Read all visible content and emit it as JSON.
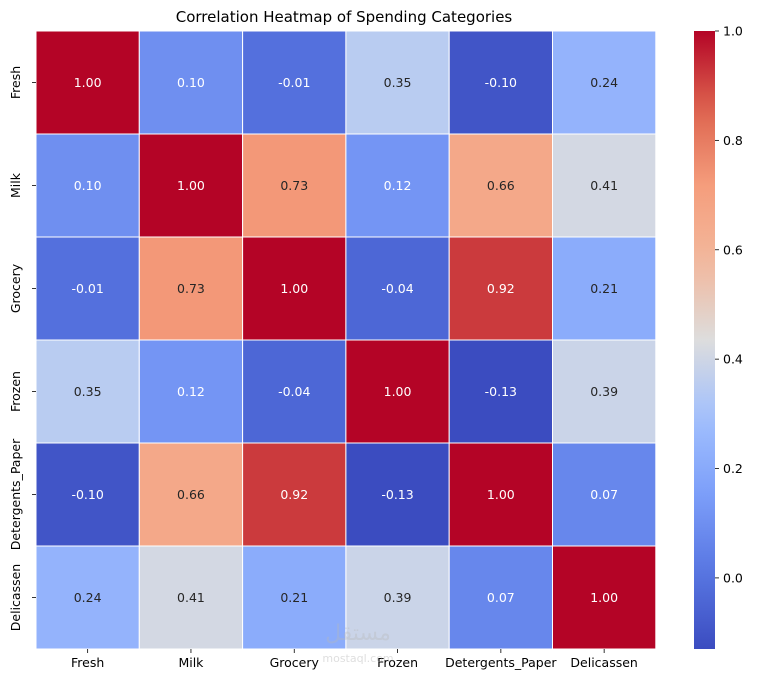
{
  "chart_data": {
    "type": "heatmap",
    "title": "Correlation Heatmap of Spending Categories",
    "xlabel": "",
    "ylabel": "",
    "x_categories": [
      "Fresh",
      "Milk",
      "Grocery",
      "Frozen",
      "Detergents_Paper",
      "Delicassen"
    ],
    "y_categories": [
      "Fresh",
      "Milk",
      "Grocery",
      "Frozen",
      "Detergents_Paper",
      "Delicassen"
    ],
    "values": [
      [
        1.0,
        0.1,
        -0.01,
        0.35,
        -0.1,
        0.24
      ],
      [
        0.1,
        1.0,
        0.73,
        0.12,
        0.66,
        0.41
      ],
      [
        -0.01,
        0.73,
        1.0,
        -0.04,
        0.92,
        0.21
      ],
      [
        0.35,
        0.12,
        -0.04,
        1.0,
        -0.13,
        0.39
      ],
      [
        -0.1,
        0.66,
        0.92,
        -0.13,
        1.0,
        0.07
      ],
      [
        0.24,
        0.41,
        0.21,
        0.39,
        0.07,
        1.0
      ]
    ],
    "annotation_format": "0.00",
    "colormap": "coolwarm",
    "vmin": -0.13,
    "vmax": 1.0,
    "colorbar": {
      "ticks": [
        0.0,
        0.2,
        0.4,
        0.6,
        0.8,
        1.0
      ],
      "tick_labels": [
        "0.0",
        "0.2",
        "0.4",
        "0.6",
        "0.8",
        "1.0"
      ]
    },
    "cell_border_color": "#ffffff",
    "legend": "none"
  },
  "watermark": {
    "text": "مستقل",
    "subtext": "mostaql.com"
  }
}
